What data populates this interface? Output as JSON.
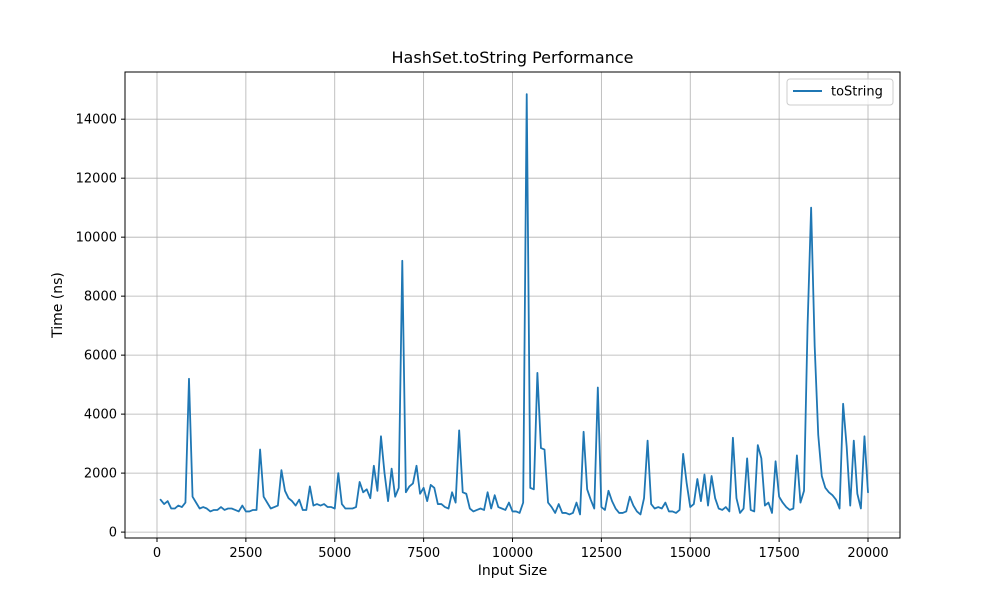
{
  "chart_data": {
    "type": "line",
    "title": "HashSet.toString Performance",
    "xlabel": "Input Size",
    "ylabel": "Time (ns)",
    "xlim": [
      -900,
      20900
    ],
    "ylim": [
      -200,
      15600
    ],
    "xticks": [
      0,
      2500,
      5000,
      7500,
      10000,
      12500,
      15000,
      17500,
      20000
    ],
    "yticks": [
      0,
      2000,
      4000,
      6000,
      8000,
      10000,
      12000,
      14000
    ],
    "grid": true,
    "legend_position": "top-right",
    "series": [
      {
        "name": "toString",
        "color": "#1f77b4",
        "x": [
          100,
          200,
          300,
          400,
          500,
          600,
          700,
          800,
          900,
          1000,
          1100,
          1200,
          1300,
          1400,
          1500,
          1600,
          1700,
          1800,
          1900,
          2000,
          2100,
          2200,
          2300,
          2400,
          2500,
          2600,
          2700,
          2800,
          2900,
          3000,
          3100,
          3200,
          3300,
          3400,
          3500,
          3600,
          3700,
          3800,
          3900,
          4000,
          4100,
          4200,
          4300,
          4400,
          4500,
          4600,
          4700,
          4800,
          4900,
          5000,
          5100,
          5200,
          5300,
          5400,
          5500,
          5600,
          5700,
          5800,
          5900,
          6000,
          6100,
          6200,
          6300,
          6400,
          6500,
          6600,
          6700,
          6800,
          6900,
          7000,
          7100,
          7200,
          7300,
          7400,
          7500,
          7600,
          7700,
          7800,
          7900,
          8000,
          8100,
          8200,
          8300,
          8400,
          8500,
          8600,
          8700,
          8800,
          8900,
          9000,
          9100,
          9200,
          9300,
          9400,
          9500,
          9600,
          9700,
          9800,
          9900,
          10000,
          10100,
          10200,
          10300,
          10400,
          10500,
          10600,
          10700,
          10800,
          10900,
          11000,
          11100,
          11200,
          11300,
          11400,
          11500,
          11600,
          11700,
          11800,
          11900,
          12000,
          12100,
          12200,
          12300,
          12400,
          12500,
          12600,
          12700,
          12800,
          12900,
          13000,
          13100,
          13200,
          13300,
          13400,
          13500,
          13600,
          13700,
          13800,
          13900,
          14000,
          14100,
          14200,
          14300,
          14400,
          14500,
          14600,
          14700,
          14800,
          14900,
          15000,
          15100,
          15200,
          15300,
          15400,
          15500,
          15600,
          15700,
          15800,
          15900,
          16000,
          16100,
          16200,
          16300,
          16400,
          16500,
          16600,
          16700,
          16800,
          16900,
          17000,
          17100,
          17200,
          17300,
          17400,
          17500,
          17600,
          17700,
          17800,
          17900,
          18000,
          18100,
          18200,
          18300,
          18400,
          18500,
          18600,
          18700,
          18800,
          18900,
          19000,
          19100,
          19200,
          19300,
          19400,
          19500,
          19600,
          19700,
          19800,
          19900,
          20000
        ],
        "y": [
          1100,
          950,
          1050,
          800,
          800,
          900,
          850,
          1000,
          5200,
          1200,
          1000,
          800,
          850,
          800,
          700,
          750,
          750,
          850,
          750,
          800,
          800,
          750,
          700,
          900,
          700,
          700,
          750,
          750,
          2800,
          1200,
          1000,
          800,
          850,
          900,
          2100,
          1400,
          1150,
          1050,
          900,
          1100,
          750,
          750,
          1550,
          900,
          950,
          900,
          950,
          850,
          850,
          800,
          2000,
          950,
          800,
          800,
          800,
          850,
          1700,
          1350,
          1450,
          1150,
          2250,
          1400,
          3250,
          2000,
          1050,
          2150,
          1200,
          1500,
          9200,
          1350,
          1550,
          1650,
          2250,
          1300,
          1500,
          1050,
          1600,
          1500,
          950,
          950,
          850,
          800,
          1350,
          1000,
          3450,
          1350,
          1300,
          800,
          700,
          750,
          800,
          750,
          1350,
          800,
          1250,
          850,
          800,
          750,
          1000,
          700,
          700,
          650,
          1000,
          14850,
          1500,
          1450,
          5400,
          2850,
          2800,
          1000,
          850,
          650,
          950,
          650,
          650,
          600,
          650,
          1000,
          600,
          3400,
          1450,
          1100,
          800,
          4900,
          850,
          750,
          1400,
          1050,
          800,
          650,
          650,
          700,
          1200,
          900,
          700,
          600,
          1150,
          3100,
          950,
          800,
          850,
          800,
          1000,
          700,
          700,
          650,
          750,
          2650,
          1650,
          850,
          950,
          1800,
          1050,
          1950,
          900,
          1900,
          1150,
          800,
          750,
          850,
          700,
          3200,
          1150,
          650,
          800,
          2500,
          750,
          700,
          2950,
          2500,
          900,
          1000,
          650,
          2400,
          1200,
          1000,
          850,
          750,
          800,
          2600,
          1000,
          1400,
          7000,
          11000,
          6300,
          3300,
          1900,
          1500,
          1350,
          1250,
          1100,
          800,
          4350,
          2900,
          900,
          3100,
          1300,
          800,
          3250,
          1350
        ]
      }
    ]
  }
}
